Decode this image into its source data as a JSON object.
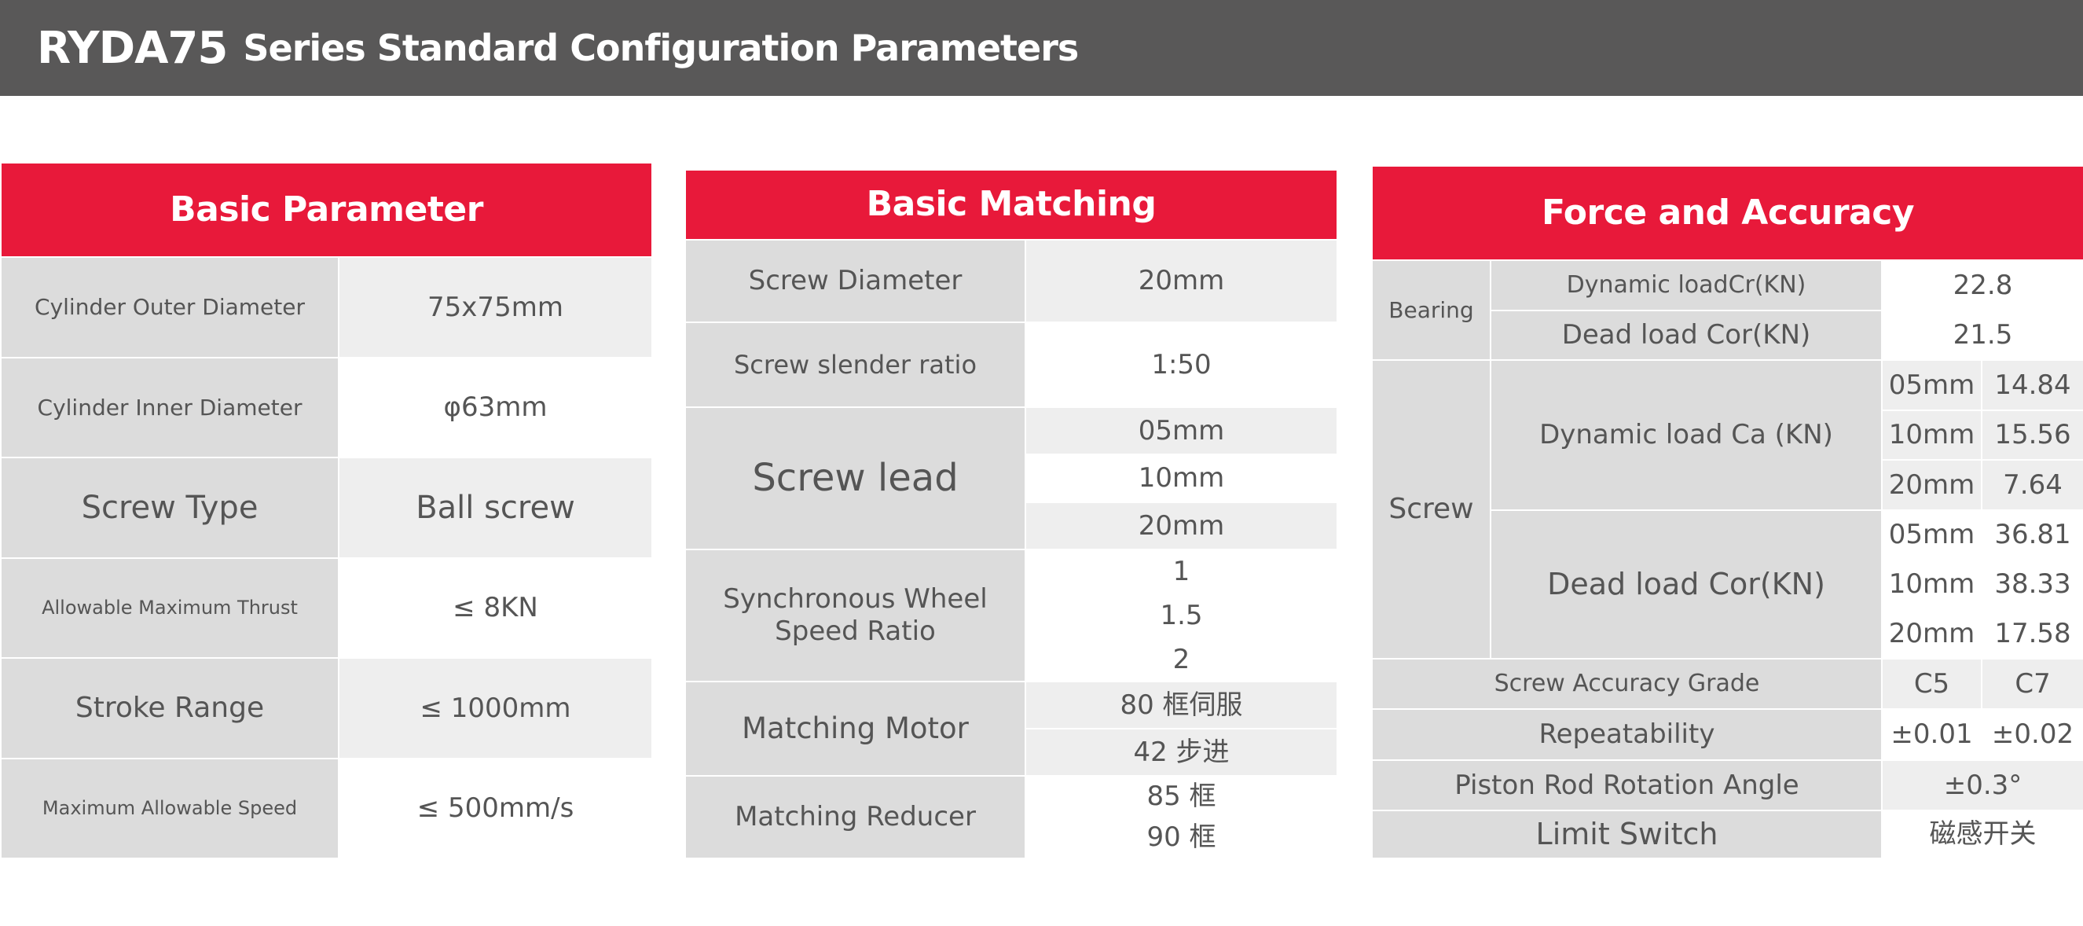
{
  "title": {
    "model": "RYDA75",
    "rest": "Series Standard Configuration Parameters"
  },
  "colors": {
    "header_bar": "#595858",
    "accent": "#e8193a",
    "cell_dark": "#dcdcdc",
    "cell_light": "#eeeeee"
  },
  "basic_parameter": {
    "heading": "Basic Parameter",
    "rows": [
      {
        "label": "Cylinder Outer Diameter",
        "value": "75x75mm"
      },
      {
        "label": "Cylinder Inner Diameter",
        "value": "φ63mm"
      },
      {
        "label": "Screw Type",
        "value": "Ball screw"
      },
      {
        "label": "Allowable Maximum Thrust",
        "value": "≤ 8KN"
      },
      {
        "label": "Stroke Range",
        "value": "≤ 1000mm"
      },
      {
        "label": "Maximum Allowable Speed",
        "value": "≤ 500mm/s"
      }
    ]
  },
  "basic_matching": {
    "heading": "Basic Matching",
    "screw_diameter": {
      "label": "Screw Diameter",
      "value": "20mm"
    },
    "slender_ratio": {
      "label": "Screw slender ratio",
      "value": "1:50"
    },
    "screw_lead": {
      "label": "Screw lead",
      "values": [
        "05mm",
        "10mm",
        "20mm"
      ]
    },
    "sync_wheel": {
      "label": "Synchronous Wheel Speed Ratio",
      "values": [
        "1",
        "1.5",
        "2"
      ]
    },
    "motor": {
      "label": "Matching Motor",
      "values": [
        "80 框伺服",
        "42 步进"
      ]
    },
    "reducer": {
      "label": "Matching Reducer",
      "values": [
        "85 框",
        "90 框"
      ]
    }
  },
  "force_accuracy": {
    "heading": "Force and Accuracy",
    "bearing": {
      "label": "Bearing",
      "dynamic_label": "Dynamic loadCr(KN)",
      "dynamic_value": "22.8",
      "dead_label": "Dead load Cor(KN)",
      "dead_value": "21.5"
    },
    "screw": {
      "label": "Screw",
      "dynamic": {
        "label": "Dynamic load Ca (KN)",
        "rows": [
          {
            "lead": "05mm",
            "value": "14.84"
          },
          {
            "lead": "10mm",
            "value": "15.56"
          },
          {
            "lead": "20mm",
            "value": "7.64"
          }
        ]
      },
      "dead": {
        "label": "Dead load Cor(KN)",
        "rows": [
          {
            "lead": "05mm",
            "value": "36.81"
          },
          {
            "lead": "10mm",
            "value": "38.33"
          },
          {
            "lead": "20mm",
            "value": "17.58"
          }
        ]
      }
    },
    "accuracy": {
      "label": "Screw Accuracy Grade",
      "values": [
        "C5",
        "C7"
      ]
    },
    "repeatability": {
      "label": "Repeatability",
      "values": [
        "±0.01",
        "±0.02"
      ]
    },
    "rotation": {
      "label": "Piston Rod Rotation Angle",
      "value": "±0.3°"
    },
    "limit": {
      "label": "Limit Switch",
      "value": "磁感开关"
    }
  }
}
